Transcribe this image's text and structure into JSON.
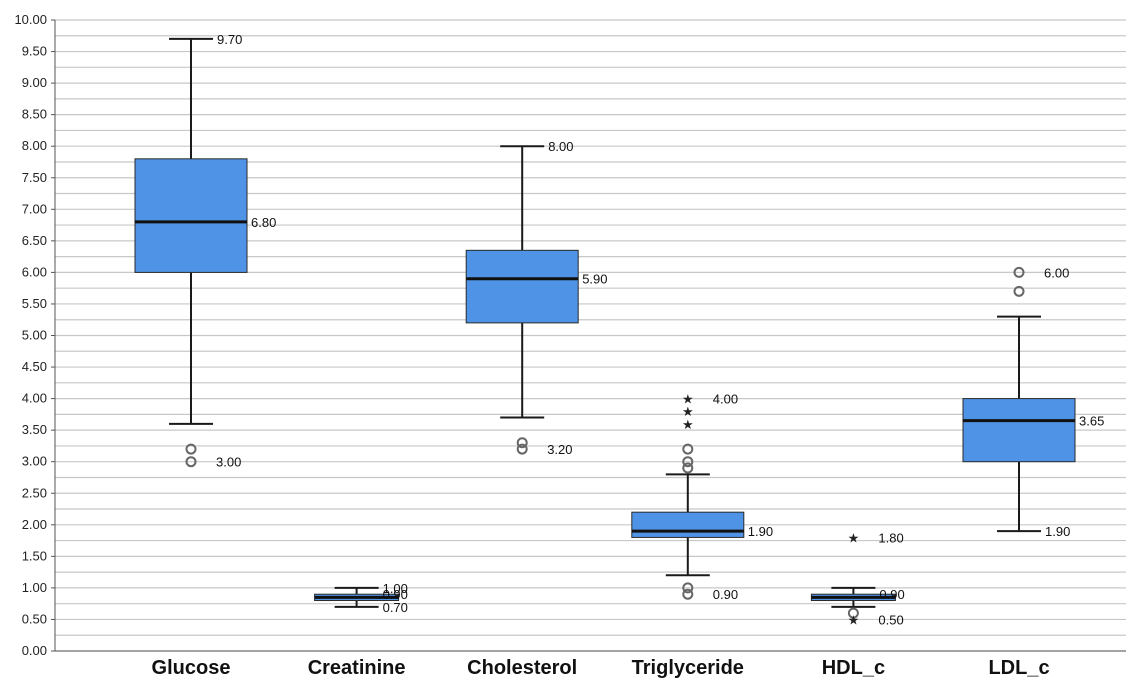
{
  "chart_data": {
    "type": "box",
    "y_ticks": [
      "0.00",
      "0.50",
      "1.00",
      "1.50",
      "2.00",
      "2.50",
      "3.00",
      "3.50",
      "4.00",
      "4.50",
      "5.00",
      "5.50",
      "6.00",
      "6.50",
      "7.00",
      "7.50",
      "8.00",
      "8.50",
      "9.00",
      "9.50",
      "10.00"
    ],
    "ylim": [
      0,
      10
    ],
    "grid_step": 0.25,
    "grid": true,
    "categories": [
      "Glucose",
      "Creatinine",
      "Cholesterol",
      "Triglyceride",
      "HDL_c",
      "LDL_c"
    ],
    "boxes": [
      {
        "category": "Glucose",
        "whisker_low": 3.6,
        "q1": 6.0,
        "median": 6.8,
        "q3": 7.8,
        "whisker_high": 9.7,
        "outliers": [
          3.2,
          3.0
        ],
        "extremes": [],
        "labels": [
          {
            "text": "9.70",
            "y": 9.7
          },
          {
            "text": "6.80",
            "y": 6.8
          },
          {
            "text": "3.00",
            "y": 3.0
          }
        ]
      },
      {
        "category": "Creatinine",
        "whisker_low": 0.7,
        "q1": 0.8,
        "median": 0.85,
        "q3": 0.9,
        "whisker_high": 1.0,
        "outliers": [],
        "extremes": [],
        "labels": [
          {
            "text": "1.00",
            "y": 1.0
          },
          {
            "text": "0.90",
            "y": 0.9
          },
          {
            "text": "0.70",
            "y": 0.7
          }
        ]
      },
      {
        "category": "Cholesterol",
        "whisker_low": 3.7,
        "q1": 5.2,
        "median": 5.9,
        "q3": 6.35,
        "whisker_high": 8.0,
        "outliers": [
          3.3,
          3.2
        ],
        "extremes": [],
        "labels": [
          {
            "text": "8.00",
            "y": 8.0
          },
          {
            "text": "5.90",
            "y": 5.9
          },
          {
            "text": "3.20",
            "y": 3.2
          }
        ]
      },
      {
        "category": "Triglyceride",
        "whisker_low": 1.2,
        "q1": 1.8,
        "median": 1.9,
        "q3": 2.2,
        "whisker_high": 2.8,
        "outliers": [
          3.2,
          3.0,
          2.9,
          1.0,
          0.9
        ],
        "extremes": [
          4.0,
          3.8,
          3.6
        ],
        "labels": [
          {
            "text": "4.00",
            "y": 4.0
          },
          {
            "text": "1.90",
            "y": 1.9
          },
          {
            "text": "0.90",
            "y": 0.9
          }
        ]
      },
      {
        "category": "HDL_c",
        "whisker_low": 0.7,
        "q1": 0.8,
        "median": 0.85,
        "q3": 0.9,
        "whisker_high": 1.0,
        "outliers": [
          0.6
        ],
        "extremes": [
          1.8,
          0.5
        ],
        "labels": [
          {
            "text": "1.80",
            "y": 1.8
          },
          {
            "text": "0.90",
            "y": 0.9
          },
          {
            "text": "0.50",
            "y": 0.5
          }
        ]
      },
      {
        "category": "LDL_c",
        "whisker_low": 1.9,
        "q1": 3.0,
        "median": 3.65,
        "q3": 4.0,
        "whisker_high": 5.3,
        "outliers": [
          6.0,
          5.7
        ],
        "extremes": [],
        "labels": [
          {
            "text": "6.00",
            "y": 6.0
          },
          {
            "text": "3.65",
            "y": 3.65
          },
          {
            "text": "1.90",
            "y": 1.9
          }
        ]
      }
    ]
  }
}
